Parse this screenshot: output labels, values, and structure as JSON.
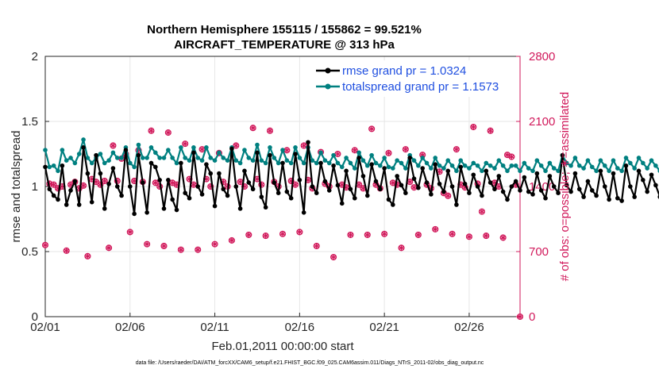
{
  "chart_data": {
    "type": "line",
    "title_line1": "Northern Hemisphere 155115 / 155862 = 99.521%",
    "title_line2": "AIRCRAFT_TEMPERATURE @ 313 hPa",
    "xlabel": "Feb.01,2011 00:00:00 start",
    "ylabel_left": "rmse and totalspread",
    "ylabel_right": "# of obs: o=possible; ∗=assimilated",
    "x_ticks": [
      "02/01",
      "02/06",
      "02/11",
      "02/16",
      "02/21",
      "02/26"
    ],
    "x_tick_days": [
      0,
      5,
      10,
      15,
      20,
      25
    ],
    "x_range_days": [
      0,
      28
    ],
    "y_left_ticks": [
      "0",
      "0.5",
      "1",
      "1.5",
      "2"
    ],
    "y_left_values": [
      0,
      0.5,
      1,
      1.5,
      2
    ],
    "ylim_left": [
      0,
      2
    ],
    "y_right_ticks": [
      "0",
      "700",
      "1400",
      "2100",
      "2800"
    ],
    "y_right_values": [
      0,
      700,
      1400,
      2100,
      2800
    ],
    "ylim_right": [
      0,
      2800
    ],
    "step_days": 0.25,
    "series": [
      {
        "name": "rmse grand pr = 1.0324",
        "color": "#000000",
        "values": [
          1.15,
          0.98,
          0.93,
          0.9,
          1.16,
          0.86,
          0.97,
          1.04,
          0.86,
          1.3,
          1.1,
          0.88,
          1.24,
          1.1,
          0.83,
          1.02,
          1.14,
          1.0,
          0.93,
          1.28,
          1.0,
          0.79,
          1.24,
          1.03,
          0.8,
          1.18,
          1.15,
          1.05,
          0.83,
          1.05,
          0.9,
          0.82,
          1.18,
          0.95,
          0.91,
          1.26,
          1.0,
          0.94,
          1.17,
          1.1,
          0.85,
          1.1,
          0.98,
          0.93,
          1.29,
          1.0,
          0.83,
          1.12,
          1.03,
          0.98,
          1.26,
          0.92,
          0.84,
          1.24,
          1.03,
          0.95,
          1.18,
          0.96,
          0.91,
          1.25,
          1.05,
          0.8,
          1.34,
          1.0,
          0.95,
          1.18,
          1.04,
          0.97,
          1.16,
          1.01,
          0.87,
          1.12,
          0.98,
          0.91,
          1.22,
          1.08,
          0.93,
          1.17,
          1.04,
          0.98,
          1.14,
          0.9,
          0.86,
          1.08,
          1.01,
          0.95,
          1.22,
          1.06,
          0.99,
          1.14,
          1.03,
          0.94,
          1.17,
          1.02,
          0.96,
          1.12,
          1.0,
          0.86,
          1.15,
          1.02,
          0.95,
          1.09,
          1.0,
          0.93,
          1.12,
          1.03,
          0.98,
          1.08,
          0.96,
          0.9,
          1.0,
          1.04,
          0.97,
          1.07,
          0.96,
          0.94,
          1.1,
          0.97,
          0.91,
          1.08,
          1.0,
          0.95,
          1.24,
          1.01,
          0.96,
          1.1,
          0.98,
          0.92,
          1.04,
          0.97,
          0.93,
          1.12,
          1.0,
          0.9,
          1.1,
          0.91,
          0.89,
          1.16,
          1.0,
          0.92,
          1.12,
          1.05,
          0.96,
          1.09,
          1.01,
          0.92,
          1.06,
          0.96,
          0.9,
          1.12,
          1.08,
          0.96,
          1.2,
          1.05,
          0.9,
          1.02,
          0.97,
          0.91,
          1.04,
          0.98,
          0.9,
          1.0,
          0.93,
          0.92,
          1.05,
          1.28,
          1.02,
          1.04,
          1.06,
          0.89
        ]
      },
      {
        "name": "totalspread grand pr = 1.1573",
        "color": "#008080",
        "values": [
          1.28,
          1.15,
          1.16,
          1.12,
          1.28,
          1.2,
          1.22,
          1.18,
          1.25,
          1.36,
          1.22,
          1.18,
          1.22,
          1.25,
          1.18,
          1.2,
          1.26,
          1.22,
          1.22,
          1.3,
          1.18,
          1.15,
          1.32,
          1.22,
          1.22,
          1.3,
          1.26,
          1.22,
          1.22,
          1.28,
          1.22,
          1.18,
          1.3,
          1.22,
          1.2,
          1.3,
          1.22,
          1.2,
          1.3,
          1.22,
          1.2,
          1.26,
          1.22,
          1.2,
          1.3,
          1.2,
          1.18,
          1.28,
          1.22,
          1.2,
          1.32,
          1.2,
          1.18,
          1.3,
          1.22,
          1.18,
          1.28,
          1.2,
          1.18,
          1.3,
          1.22,
          1.18,
          1.3,
          1.2,
          1.18,
          1.26,
          1.2,
          1.18,
          1.24,
          1.18,
          1.15,
          1.22,
          1.18,
          1.14,
          1.26,
          1.2,
          1.16,
          1.24,
          1.18,
          1.16,
          1.22,
          1.15,
          1.14,
          1.2,
          1.18,
          1.14,
          1.24,
          1.2,
          1.16,
          1.22,
          1.18,
          1.14,
          1.22,
          1.16,
          1.14,
          1.2,
          1.16,
          1.12,
          1.2,
          1.16,
          1.14,
          1.18,
          1.16,
          1.12,
          1.18,
          1.16,
          1.14,
          1.2,
          1.16,
          1.12,
          1.16,
          1.16,
          1.12,
          1.18,
          1.14,
          1.12,
          1.2,
          1.16,
          1.12,
          1.18,
          1.14,
          1.12,
          1.24,
          1.18,
          1.16,
          1.22,
          1.16,
          1.14,
          1.2,
          1.15,
          1.12,
          1.2,
          1.16,
          1.12,
          1.2,
          1.14,
          1.12,
          1.22,
          1.18,
          1.14,
          1.22,
          1.18,
          1.14,
          1.2,
          1.16,
          1.12,
          1.18,
          1.14,
          1.12,
          1.22,
          1.2,
          1.14,
          1.24,
          1.2,
          1.14,
          1.2,
          1.16,
          1.12,
          1.2,
          1.16,
          1.12,
          1.18,
          1.14,
          1.12,
          1.2,
          1.26,
          1.18,
          1.2,
          1.2,
          1.1
        ]
      }
    ],
    "obs_marker_color": "#d1195b",
    "obs_points": [
      [
        0.0,
        770
      ],
      [
        0.25,
        1430
      ],
      [
        0.5,
        1420
      ],
      [
        0.75,
        1380
      ],
      [
        1.0,
        1400
      ],
      [
        1.25,
        710
      ],
      [
        1.5,
        1420
      ],
      [
        1.75,
        1450
      ],
      [
        2.0,
        1380
      ],
      [
        2.25,
        1410
      ],
      [
        2.5,
        650
      ],
      [
        2.75,
        1480
      ],
      [
        3.0,
        1450
      ],
      [
        3.25,
        1420
      ],
      [
        3.5,
        1460
      ],
      [
        3.75,
        740
      ],
      [
        4.0,
        1840
      ],
      [
        4.25,
        1460
      ],
      [
        4.5,
        1700
      ],
      [
        4.75,
        1750
      ],
      [
        5.0,
        910
      ],
      [
        5.25,
        1460
      ],
      [
        5.5,
        1790
      ],
      [
        5.75,
        1450
      ],
      [
        6.0,
        780
      ],
      [
        6.25,
        2000
      ],
      [
        6.5,
        1440
      ],
      [
        6.75,
        1400
      ],
      [
        7.0,
        760
      ],
      [
        7.25,
        1980
      ],
      [
        7.5,
        1440
      ],
      [
        7.75,
        1420
      ],
      [
        8.0,
        720
      ],
      [
        8.25,
        1860
      ],
      [
        8.5,
        1480
      ],
      [
        8.75,
        1420
      ],
      [
        9.0,
        720
      ],
      [
        9.25,
        1800
      ],
      [
        9.5,
        1480
      ],
      [
        9.75,
        1400
      ],
      [
        10.0,
        780
      ],
      [
        10.25,
        1760
      ],
      [
        10.5,
        1450
      ],
      [
        10.75,
        1400
      ],
      [
        11.0,
        820
      ],
      [
        11.25,
        1840
      ],
      [
        11.5,
        1450
      ],
      [
        11.75,
        1400
      ],
      [
        12.0,
        880
      ],
      [
        12.25,
        2030
      ],
      [
        12.5,
        1480
      ],
      [
        12.75,
        1420
      ],
      [
        13.0,
        870
      ],
      [
        13.25,
        2000
      ],
      [
        13.5,
        1450
      ],
      [
        13.75,
        1400
      ],
      [
        14.0,
        890
      ],
      [
        14.25,
        1790
      ],
      [
        14.5,
        1460
      ],
      [
        14.75,
        1420
      ],
      [
        15.0,
        910
      ],
      [
        15.25,
        1840
      ],
      [
        15.5,
        1470
      ],
      [
        15.75,
        1380
      ],
      [
        16.0,
        760
      ],
      [
        16.25,
        1770
      ],
      [
        16.5,
        1430
      ],
      [
        16.75,
        1400
      ],
      [
        17.0,
        640
      ],
      [
        17.25,
        1750
      ],
      [
        17.5,
        1420
      ],
      [
        17.75,
        1390
      ],
      [
        18.0,
        880
      ],
      [
        18.25,
        1790
      ],
      [
        18.5,
        1420
      ],
      [
        18.75,
        1380
      ],
      [
        19.0,
        880
      ],
      [
        19.25,
        2020
      ],
      [
        19.5,
        1420
      ],
      [
        19.75,
        1380
      ],
      [
        20.0,
        890
      ],
      [
        20.25,
        1760
      ],
      [
        20.5,
        1440
      ],
      [
        20.75,
        1420
      ],
      [
        21.0,
        740
      ],
      [
        21.25,
        1800
      ],
      [
        21.5,
        1450
      ],
      [
        21.75,
        1390
      ],
      [
        22.0,
        880
      ],
      [
        22.25,
        1740
      ],
      [
        22.5,
        1420
      ],
      [
        22.75,
        1380
      ],
      [
        23.0,
        940
      ],
      [
        23.25,
        1560
      ],
      [
        23.5,
        1330
      ],
      [
        23.75,
        1300
      ],
      [
        24.0,
        890
      ],
      [
        24.25,
        1800
      ],
      [
        24.5,
        1420
      ],
      [
        24.75,
        1390
      ],
      [
        25.0,
        860
      ],
      [
        25.25,
        2040
      ],
      [
        25.5,
        1430
      ],
      [
        25.75,
        1130
      ],
      [
        26.0,
        870
      ],
      [
        26.25,
        2000
      ],
      [
        26.5,
        1440
      ],
      [
        26.75,
        1400
      ],
      [
        27.0,
        850
      ],
      [
        27.25,
        1740
      ],
      [
        27.5,
        1720
      ],
      [
        27.75,
        1420
      ],
      [
        28.0,
        0
      ]
    ]
  },
  "footnote": "data file: /Users/raeder/DAI/ATM_forcXX/CAM6_setup/f.e21.FHIST_BGC.f09_025.CAM6assim.011/Diags_NTrS_2011-02/obs_diag_output.nc"
}
